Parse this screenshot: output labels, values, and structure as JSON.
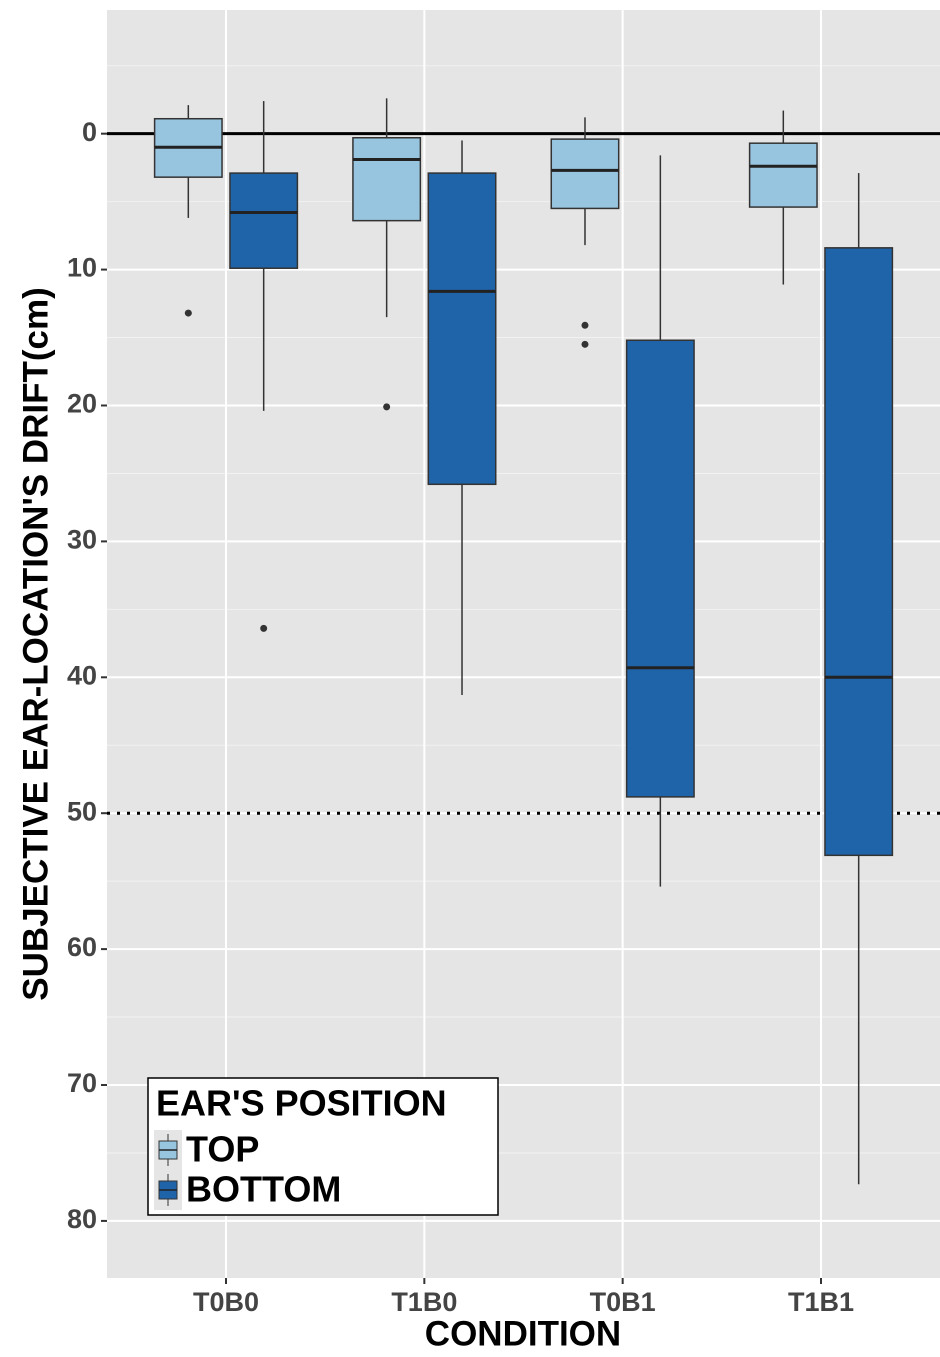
{
  "chart_data": {
    "type": "box",
    "x_label": "CONDITION",
    "y_label": "SUBJECTIVE EAR-LOCATION'S DRIFT(cm)",
    "categories": [
      "T0B0",
      "T1B0",
      "T0B1",
      "T1B1"
    ],
    "legend_title": "EAR'S POSITION",
    "legend": "bottom-left",
    "ylim": [
      -9.1,
      84.2
    ],
    "y_reversed": true,
    "yticks": [
      0,
      10,
      20,
      30,
      40,
      50,
      60,
      70,
      80
    ],
    "grid": true,
    "hlines": [
      {
        "value": 0,
        "style": "solid"
      },
      {
        "value": 50,
        "style": "dotted"
      }
    ],
    "series": [
      {
        "name": "TOP",
        "color": "#97c4df",
        "values": [
          {
            "min": -2.1,
            "q1": -1.1,
            "median": 1.0,
            "q3": 3.2,
            "max": 6.2,
            "outliers": [
              13.2
            ]
          },
          {
            "min": -2.6,
            "q1": 0.3,
            "median": 1.9,
            "q3": 6.4,
            "max": 13.5,
            "outliers": [
              20.1
            ]
          },
          {
            "min": -1.2,
            "q1": 0.4,
            "median": 2.7,
            "q3": 5.5,
            "max": 8.2,
            "outliers": [
              14.1,
              15.5
            ]
          },
          {
            "min": -1.7,
            "q1": 0.7,
            "median": 2.4,
            "q3": 5.4,
            "max": 11.1,
            "outliers": []
          }
        ]
      },
      {
        "name": "BOTTOM",
        "color": "#1f63a8",
        "values": [
          {
            "min": -2.4,
            "q1": 2.9,
            "median": 5.8,
            "q3": 9.9,
            "max": 20.4,
            "outliers": [
              36.4
            ]
          },
          {
            "min": 0.5,
            "q1": 2.9,
            "median": 11.6,
            "q3": 25.8,
            "max": 41.3,
            "outliers": []
          },
          {
            "min": 1.6,
            "q1": 15.2,
            "median": 39.3,
            "q3": 48.8,
            "max": 55.4,
            "outliers": []
          },
          {
            "min": 2.9,
            "q1": 8.4,
            "median": 40.0,
            "q3": 53.1,
            "max": 77.3,
            "outliers": []
          }
        ]
      }
    ]
  }
}
